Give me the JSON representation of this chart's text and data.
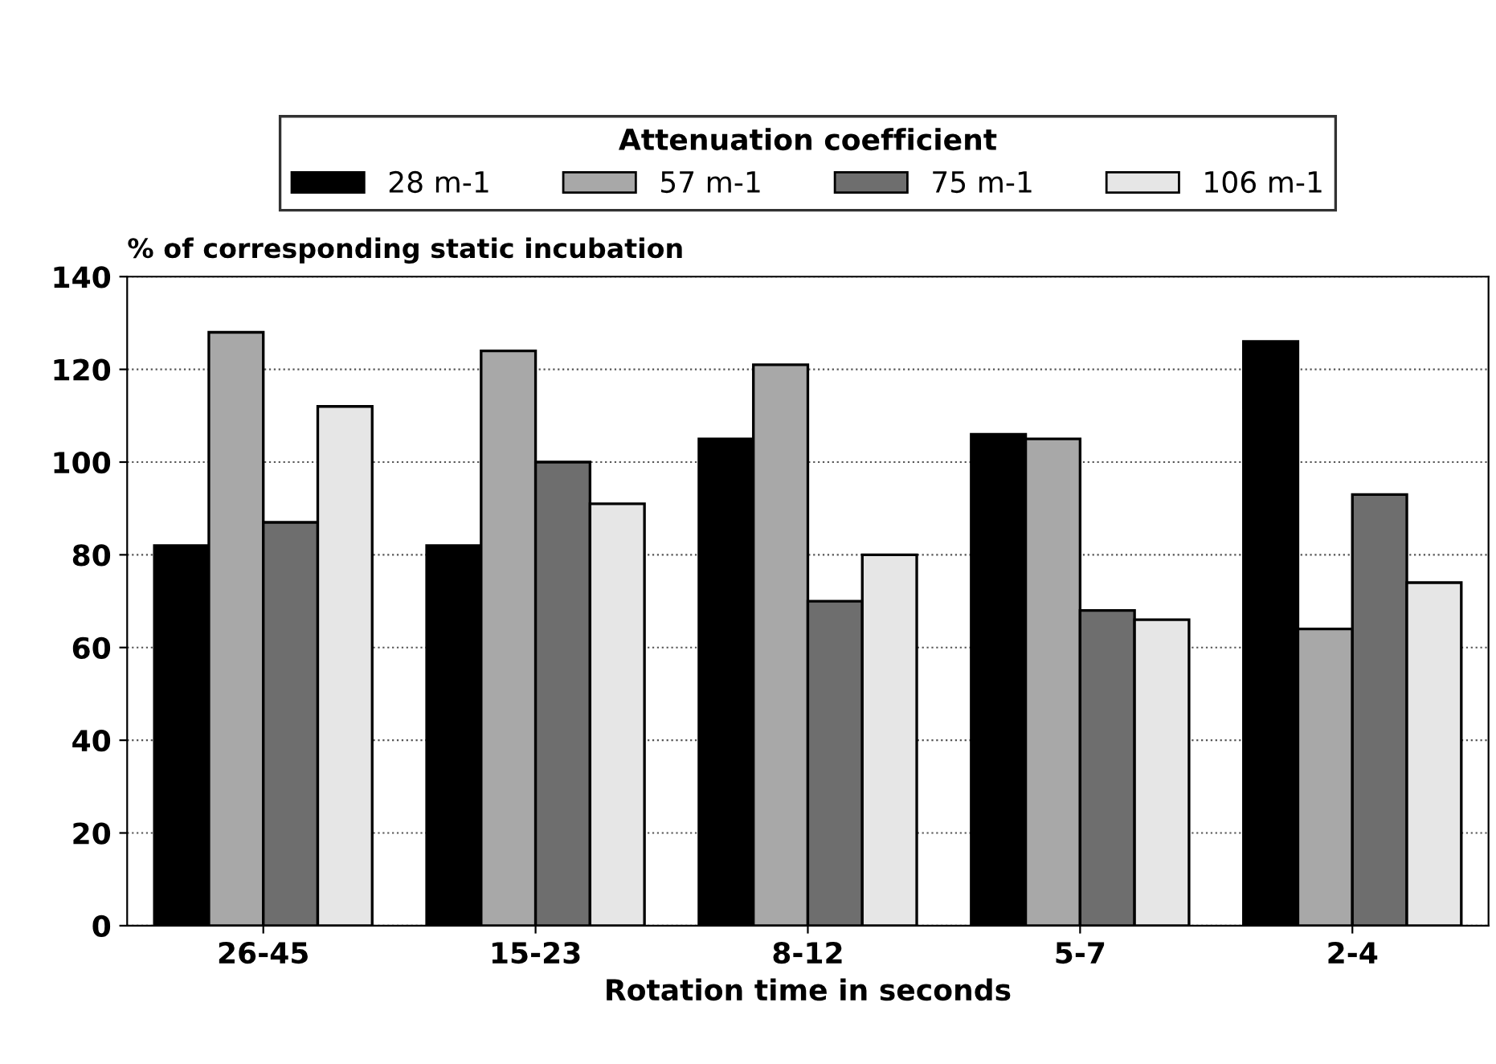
{
  "chart_data": {
    "type": "bar",
    "xlabel": "Rotation time in seconds",
    "ylabel": "% of corresponding static incubation",
    "legend_title": "Attenuation coefficient",
    "categories": [
      "26-45",
      "15-23",
      "8-12",
      "5-7",
      "2-4"
    ],
    "series": [
      {
        "name": "28 m-1",
        "color": "#000000",
        "values": [
          82,
          82,
          105,
          106,
          126
        ]
      },
      {
        "name": "57 m-1",
        "color": "#a8a8a8",
        "values": [
          128,
          124,
          121,
          105,
          64
        ]
      },
      {
        "name": "75 m-1",
        "color": "#6e6e6e",
        "values": [
          87,
          100,
          70,
          68,
          93
        ]
      },
      {
        "name": "106 m-1",
        "color": "#e6e6e6",
        "values": [
          112,
          91,
          80,
          66,
          74
        ]
      }
    ],
    "ylim": [
      0,
      140
    ],
    "yticks": [
      0,
      20,
      40,
      60,
      80,
      100,
      120,
      140
    ],
    "grid": "y",
    "legend": "top"
  }
}
